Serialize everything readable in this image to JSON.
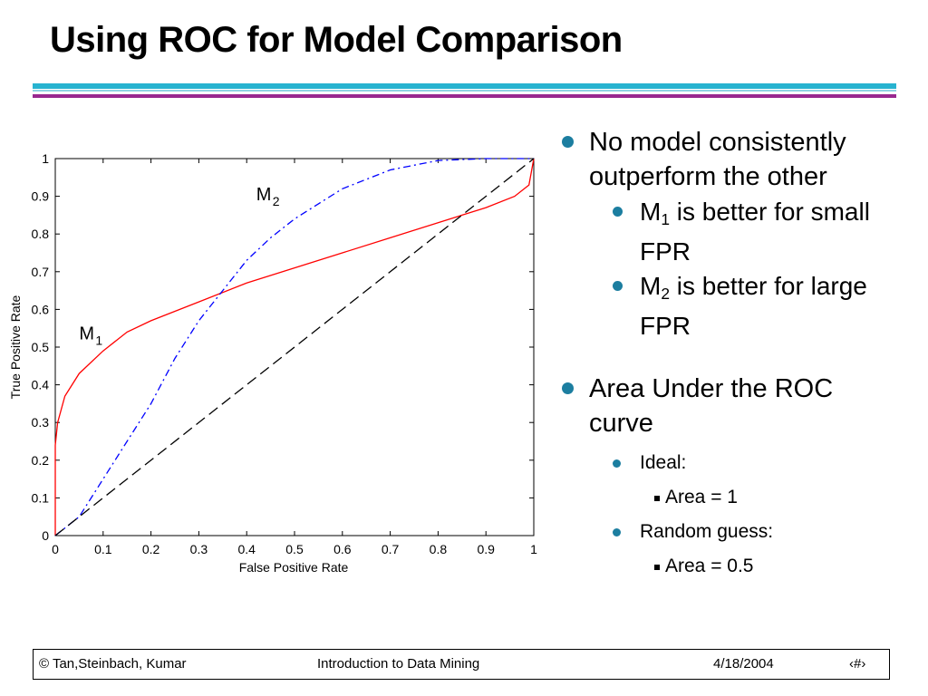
{
  "slide": {
    "title": "Using ROC for Model Comparison"
  },
  "bullets": {
    "b1_text": "No model consistently outperform the other",
    "m1_prefix": "M",
    "m1_sub": "1",
    "m1_text": " is better for small FPR",
    "m2_prefix": "M",
    "m2_sub": "2",
    "m2_text": " is better for large FPR",
    "b2_text": "Area Under the ROC curve",
    "ideal": "Ideal:",
    "ideal_area": "Area = 1",
    "random": "Random guess:",
    "random_area": "Area = 0.5"
  },
  "footer": {
    "copyright": "© Tan,Steinbach, Kumar",
    "course": "Introduction to Data Mining",
    "date": "4/18/2004",
    "page": "‹#›"
  },
  "chart_data": {
    "type": "line",
    "xlabel": "False Positive Rate",
    "ylabel": "True Positive Rate",
    "xlim": [
      0,
      1
    ],
    "ylim": [
      0,
      1
    ],
    "xticks": [
      "0",
      "0.1",
      "0.2",
      "0.3",
      "0.4",
      "0.5",
      "0.6",
      "0.7",
      "0.8",
      "0.9",
      "1"
    ],
    "yticks": [
      "0",
      "0.1",
      "0.2",
      "0.3",
      "0.4",
      "0.5",
      "0.6",
      "0.7",
      "0.8",
      "0.9",
      "1"
    ],
    "grid": false,
    "series": [
      {
        "label_main": "M",
        "label_sub": "1",
        "color": "#ff0000",
        "style": "solid",
        "label_at": [
          0.05,
          0.52
        ],
        "x": [
          0,
          0,
          0.005,
          0.02,
          0.05,
          0.1,
          0.15,
          0.2,
          0.3,
          0.4,
          0.5,
          0.6,
          0.7,
          0.8,
          0.9,
          0.96,
          0.99,
          1.0
        ],
        "y": [
          0,
          0.24,
          0.3,
          0.37,
          0.43,
          0.49,
          0.54,
          0.57,
          0.62,
          0.67,
          0.71,
          0.75,
          0.79,
          0.83,
          0.87,
          0.9,
          0.93,
          1.0
        ]
      },
      {
        "label_main": "M",
        "label_sub": "2",
        "color": "#0000ff",
        "style": "dashdot",
        "label_at": [
          0.42,
          0.89
        ],
        "x": [
          0,
          0.05,
          0.1,
          0.15,
          0.2,
          0.25,
          0.3,
          0.35,
          0.4,
          0.45,
          0.5,
          0.55,
          0.6,
          0.7,
          0.8,
          0.9,
          1.0
        ],
        "y": [
          0,
          0.05,
          0.15,
          0.25,
          0.35,
          0.47,
          0.57,
          0.65,
          0.73,
          0.79,
          0.84,
          0.88,
          0.92,
          0.97,
          0.995,
          1.0,
          1.0
        ]
      },
      {
        "color": "#000000",
        "style": "dashed",
        "x": [
          0,
          1
        ],
        "y": [
          0,
          1
        ]
      }
    ]
  }
}
